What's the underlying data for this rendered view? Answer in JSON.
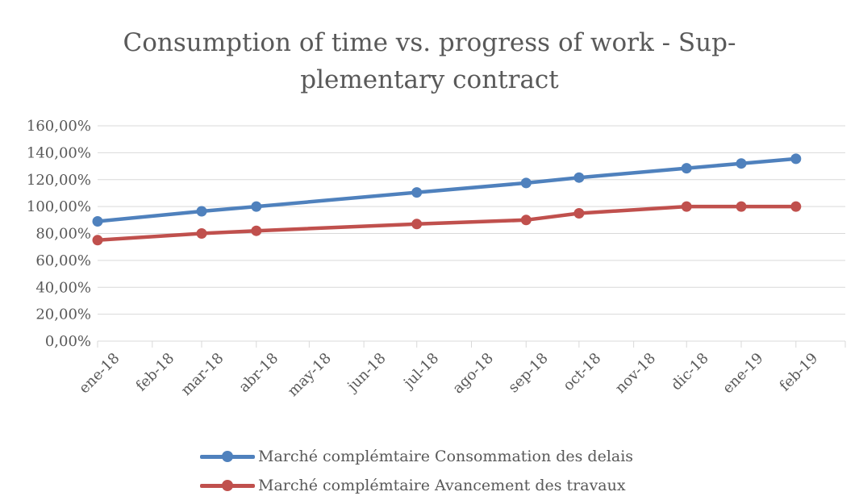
{
  "chart_data": {
    "type": "line",
    "title_lines": [
      "Consumption of time vs. progress of work - Sup-",
      "plementary contract"
    ],
    "categories": [
      "ene-18",
      "feb-18",
      "mar-18",
      "abr-18",
      "may-18",
      "jun-18",
      "jul-18",
      "ago-18",
      "sep-18",
      "oct-18",
      "nov-18",
      "dic-18",
      "ene-19",
      "feb-19"
    ],
    "y_ticks": [
      "0,00%",
      "20,00%",
      "40,00%",
      "60,00%",
      "80,00%",
      "100,00%",
      "120,00%",
      "140,00%",
      "160,00%"
    ],
    "ylim": [
      0,
      160
    ],
    "grid": true,
    "legend_position": "bottom",
    "series": [
      {
        "name": "Marché complémtaire Consommation des delais",
        "color": "#4f81bd",
        "points": [
          {
            "x": "2018-01-01",
            "y": 89
          },
          {
            "x": "2018-03-01",
            "y": 96.5
          },
          {
            "x": "2018-04-01",
            "y": 100
          },
          {
            "x": "2018-07-01",
            "y": 110.5
          },
          {
            "x": "2018-09-01",
            "y": 117.5
          },
          {
            "x": "2018-10-01",
            "y": 121.5
          },
          {
            "x": "2018-12-01",
            "y": 128.5
          },
          {
            "x": "2019-01-01",
            "y": 132
          },
          {
            "x": "2019-02-01",
            "y": 135.5
          }
        ]
      },
      {
        "name": "Marché complémtaire Avancement des travaux",
        "color": "#c0504d",
        "points": [
          {
            "x": "2018-01-01",
            "y": 75
          },
          {
            "x": "2018-03-01",
            "y": 80
          },
          {
            "x": "2018-04-01",
            "y": 82
          },
          {
            "x": "2018-07-01",
            "y": 87
          },
          {
            "x": "2018-09-01",
            "y": 90
          },
          {
            "x": "2018-10-01",
            "y": 95
          },
          {
            "x": "2018-12-01",
            "y": 100
          },
          {
            "x": "2019-01-01",
            "y": 100
          },
          {
            "x": "2019-02-01",
            "y": 100
          }
        ]
      }
    ]
  }
}
